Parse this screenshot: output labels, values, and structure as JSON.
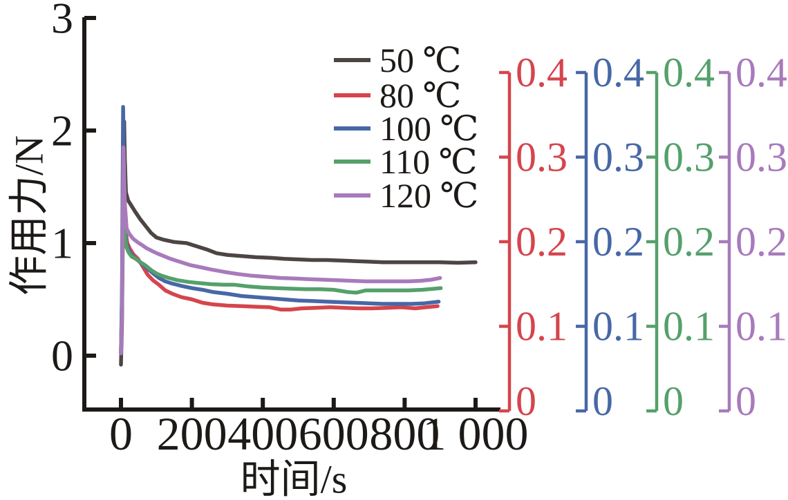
{
  "page": {
    "background": "#ffffff",
    "text_color": "#1c1917"
  },
  "chart_data": {
    "type": "line",
    "title": "",
    "xlabel": "时间/s",
    "ylabel": "作用力/N",
    "grid": false,
    "legend_position": "top-center-inside",
    "x_axis": {
      "ticks": [
        0,
        200,
        400,
        600,
        800,
        1000
      ],
      "tick_labels": [
        "0",
        "200",
        "400",
        "600",
        "800",
        "1 000"
      ],
      "range": [
        -105,
        1080
      ]
    },
    "left_y_axis": {
      "label": "作用力/N",
      "ticks": [
        0,
        1,
        2,
        3
      ],
      "tick_labels": [
        "0",
        "1",
        "2",
        "3"
      ],
      "range": [
        -0.48,
        3.0
      ]
    },
    "right_y_axes": [
      {
        "name": "right-axis-red",
        "color": "#d5454d",
        "range": [
          0,
          0.4
        ],
        "tick_labels": [
          "0",
          "0.1",
          "0.2",
          "0.3",
          "0.4"
        ]
      },
      {
        "name": "right-axis-blue",
        "color": "#4767a6",
        "range": [
          0,
          0.4
        ],
        "tick_labels": [
          "0",
          "0.1",
          "0.2",
          "0.3",
          "0.4"
        ]
      },
      {
        "name": "right-axis-green",
        "color": "#55a06b",
        "range": [
          0,
          0.4
        ],
        "tick_labels": [
          "0",
          "0.1",
          "0.2",
          "0.3",
          "0.4"
        ]
      },
      {
        "name": "right-axis-purple",
        "color": "#a87abb",
        "range": [
          0,
          0.4
        ],
        "tick_labels": [
          "0",
          "0.1",
          "0.2",
          "0.3",
          "0.4"
        ]
      }
    ],
    "legend": [
      {
        "label": "50 ℃",
        "color": "#4d4543"
      },
      {
        "label": "80 ℃",
        "color": "#d5454d"
      },
      {
        "label": "100 ℃",
        "color": "#4767a6"
      },
      {
        "label": "110 ℃",
        "color": "#55a06b"
      },
      {
        "label": "120 ℃",
        "color": "#a87abb"
      }
    ],
    "series": [
      {
        "name": "50 ℃",
        "color": "#4d4543",
        "points": [
          [
            0,
            -0.08
          ],
          [
            3,
            0.3
          ],
          [
            6,
            1.3
          ],
          [
            9,
            2.08
          ],
          [
            11,
            1.75
          ],
          [
            14,
            1.45
          ],
          [
            20,
            1.38
          ],
          [
            28,
            1.34
          ],
          [
            40,
            1.28
          ],
          [
            55,
            1.21
          ],
          [
            70,
            1.15
          ],
          [
            85,
            1.09
          ],
          [
            100,
            1.05
          ],
          [
            120,
            1.03
          ],
          [
            150,
            1.01
          ],
          [
            185,
            1.0
          ],
          [
            215,
            0.97
          ],
          [
            245,
            0.94
          ],
          [
            270,
            0.91
          ],
          [
            300,
            0.895
          ],
          [
            340,
            0.885
          ],
          [
            380,
            0.875
          ],
          [
            420,
            0.87
          ],
          [
            460,
            0.86
          ],
          [
            500,
            0.855
          ],
          [
            540,
            0.85
          ],
          [
            580,
            0.85
          ],
          [
            620,
            0.845
          ],
          [
            660,
            0.84
          ],
          [
            700,
            0.835
          ],
          [
            740,
            0.83
          ],
          [
            780,
            0.83
          ],
          [
            820,
            0.83
          ],
          [
            860,
            0.83
          ],
          [
            900,
            0.83
          ],
          [
            950,
            0.825
          ],
          [
            1000,
            0.83
          ]
        ]
      },
      {
        "name": "80 ℃",
        "color": "#d5454d",
        "points": [
          [
            0,
            0.02
          ],
          [
            3,
            0.5
          ],
          [
            6,
            1.98
          ],
          [
            9,
            1.5
          ],
          [
            13,
            1.1
          ],
          [
            18,
            1.0
          ],
          [
            25,
            0.95
          ],
          [
            35,
            0.9
          ],
          [
            48,
            0.86
          ],
          [
            60,
            0.8
          ],
          [
            75,
            0.72
          ],
          [
            90,
            0.67
          ],
          [
            107,
            0.63
          ],
          [
            125,
            0.58
          ],
          [
            145,
            0.55
          ],
          [
            170,
            0.52
          ],
          [
            200,
            0.5
          ],
          [
            230,
            0.47
          ],
          [
            260,
            0.455
          ],
          [
            300,
            0.445
          ],
          [
            340,
            0.44
          ],
          [
            380,
            0.435
          ],
          [
            420,
            0.43
          ],
          [
            450,
            0.41
          ],
          [
            480,
            0.41
          ],
          [
            510,
            0.42
          ],
          [
            550,
            0.425
          ],
          [
            590,
            0.43
          ],
          [
            630,
            0.425
          ],
          [
            670,
            0.42
          ],
          [
            710,
            0.42
          ],
          [
            750,
            0.425
          ],
          [
            790,
            0.43
          ],
          [
            830,
            0.42
          ],
          [
            860,
            0.43
          ],
          [
            893,
            0.44
          ]
        ]
      },
      {
        "name": "100 ℃",
        "color": "#4767a6",
        "points": [
          [
            0,
            0.02
          ],
          [
            3,
            0.6
          ],
          [
            6,
            2.21
          ],
          [
            10,
            1.35
          ],
          [
            14,
            1.02
          ],
          [
            19,
            0.96
          ],
          [
            27,
            0.91
          ],
          [
            38,
            0.87
          ],
          [
            50,
            0.84
          ],
          [
            65,
            0.8
          ],
          [
            80,
            0.76
          ],
          [
            95,
            0.72
          ],
          [
            107,
            0.69
          ],
          [
            125,
            0.66
          ],
          [
            145,
            0.64
          ],
          [
            170,
            0.62
          ],
          [
            200,
            0.6
          ],
          [
            230,
            0.585
          ],
          [
            260,
            0.565
          ],
          [
            300,
            0.55
          ],
          [
            340,
            0.53
          ],
          [
            380,
            0.52
          ],
          [
            420,
            0.51
          ],
          [
            460,
            0.5
          ],
          [
            500,
            0.49
          ],
          [
            540,
            0.485
          ],
          [
            580,
            0.48
          ],
          [
            620,
            0.475
          ],
          [
            660,
            0.47
          ],
          [
            700,
            0.465
          ],
          [
            740,
            0.46
          ],
          [
            780,
            0.46
          ],
          [
            820,
            0.46
          ],
          [
            855,
            0.465
          ],
          [
            896,
            0.48
          ]
        ]
      },
      {
        "name": "110 ℃",
        "color": "#55a06b",
        "points": [
          [
            0,
            0.05
          ],
          [
            3,
            0.5
          ],
          [
            7,
            1.7
          ],
          [
            11,
            1.1
          ],
          [
            15,
            0.97
          ],
          [
            21,
            0.92
          ],
          [
            30,
            0.88
          ],
          [
            42,
            0.86
          ],
          [
            55,
            0.83
          ],
          [
            70,
            0.8
          ],
          [
            85,
            0.76
          ],
          [
            100,
            0.73
          ],
          [
            115,
            0.71
          ],
          [
            135,
            0.69
          ],
          [
            160,
            0.67
          ],
          [
            190,
            0.655
          ],
          [
            220,
            0.645
          ],
          [
            255,
            0.635
          ],
          [
            290,
            0.63
          ],
          [
            320,
            0.63
          ],
          [
            360,
            0.615
          ],
          [
            400,
            0.605
          ],
          [
            440,
            0.6
          ],
          [
            480,
            0.595
          ],
          [
            520,
            0.59
          ],
          [
            560,
            0.59
          ],
          [
            600,
            0.585
          ],
          [
            640,
            0.565
          ],
          [
            665,
            0.56
          ],
          [
            690,
            0.58
          ],
          [
            730,
            0.58
          ],
          [
            770,
            0.58
          ],
          [
            810,
            0.58
          ],
          [
            850,
            0.585
          ],
          [
            902,
            0.6
          ]
        ]
      },
      {
        "name": "120 ℃",
        "color": "#a87abb",
        "points": [
          [
            0,
            0.02
          ],
          [
            3,
            0.4
          ],
          [
            7,
            1.85
          ],
          [
            11,
            1.35
          ],
          [
            16,
            1.13
          ],
          [
            24,
            1.08
          ],
          [
            34,
            1.04
          ],
          [
            46,
            1.01
          ],
          [
            58,
            0.985
          ],
          [
            72,
            0.955
          ],
          [
            88,
            0.93
          ],
          [
            101,
            0.91
          ],
          [
            120,
            0.885
          ],
          [
            140,
            0.86
          ],
          [
            165,
            0.835
          ],
          [
            195,
            0.805
          ],
          [
            225,
            0.785
          ],
          [
            255,
            0.765
          ],
          [
            290,
            0.745
          ],
          [
            330,
            0.725
          ],
          [
            370,
            0.71
          ],
          [
            410,
            0.7
          ],
          [
            450,
            0.69
          ],
          [
            490,
            0.685
          ],
          [
            530,
            0.68
          ],
          [
            570,
            0.675
          ],
          [
            610,
            0.67
          ],
          [
            650,
            0.665
          ],
          [
            690,
            0.66
          ],
          [
            730,
            0.66
          ],
          [
            770,
            0.66
          ],
          [
            810,
            0.66
          ],
          [
            845,
            0.665
          ],
          [
            875,
            0.675
          ],
          [
            900,
            0.69
          ]
        ]
      }
    ]
  }
}
